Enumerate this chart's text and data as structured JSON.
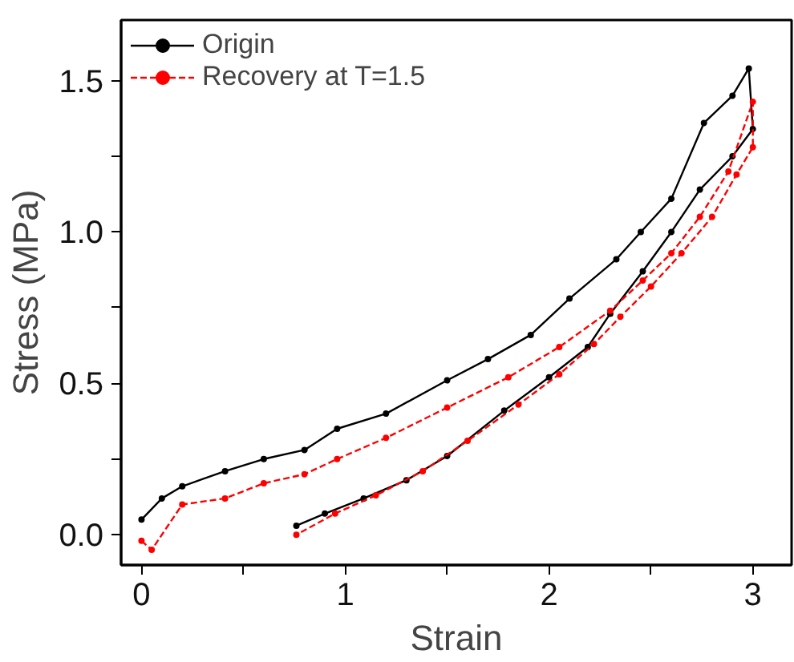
{
  "chart_data": {
    "type": "line",
    "xlabel": "Strain",
    "ylabel": "Stress (MPa)",
    "xlim": [
      -0.1,
      3.19
    ],
    "ylim": [
      -0.1,
      1.7
    ],
    "xticks": [
      0,
      {
        "value": 0.5,
        "label": null
      },
      1,
      {
        "value": 1.5,
        "label": null
      },
      2,
      {
        "value": 2.5,
        "label": null
      },
      3
    ],
    "yticks": [
      {
        "value": 0,
        "label": "0.0"
      },
      {
        "value": 0.25,
        "label": null
      },
      {
        "value": 0.5,
        "label": "0.5"
      },
      {
        "value": 0.75,
        "label": null
      },
      {
        "value": 1.0,
        "label": "1.0"
      },
      {
        "value": 1.25,
        "label": null
      },
      {
        "value": 1.5,
        "label": "1.5"
      }
    ],
    "grid": false,
    "legend": "top left",
    "marker": "circle",
    "series": [
      {
        "name": "Origin",
        "color": "#000000",
        "line_style": "solid",
        "x": [
          0,
          0.1,
          0.2,
          0.41,
          0.6,
          0.8,
          0.96,
          1.2,
          1.5,
          1.7,
          1.91,
          2.1,
          2.33,
          2.45,
          2.6,
          2.76,
          2.9,
          2.98,
          3.0,
          2.9,
          2.74,
          2.6,
          2.46,
          2.3,
          2.19,
          2.0,
          1.78,
          1.5,
          1.3,
          1.09,
          0.9,
          0.76
        ],
        "values": [
          0.05,
          0.12,
          0.16,
          0.21,
          0.25,
          0.28,
          0.35,
          0.4,
          0.51,
          0.58,
          0.66,
          0.78,
          0.91,
          1.0,
          1.11,
          1.36,
          1.45,
          1.54,
          1.34,
          1.25,
          1.14,
          1.0,
          0.87,
          0.73,
          0.62,
          0.52,
          0.41,
          0.26,
          0.18,
          0.12,
          0.07,
          0.03
        ]
      },
      {
        "name": "Recovery at T=1.5",
        "color": "#ff0000",
        "line_style": "dashed",
        "x": [
          0,
          0.05,
          0.2,
          0.41,
          0.6,
          0.8,
          0.96,
          1.2,
          1.5,
          1.8,
          2.05,
          2.3,
          2.46,
          2.6,
          2.74,
          2.88,
          3.0,
          3.0,
          2.92,
          2.8,
          2.65,
          2.5,
          2.35,
          2.22,
          2.05,
          1.85,
          1.6,
          1.38,
          1.15,
          0.95,
          0.76
        ],
        "values": [
          -0.02,
          -0.05,
          0.1,
          0.12,
          0.17,
          0.2,
          0.25,
          0.32,
          0.42,
          0.52,
          0.62,
          0.74,
          0.84,
          0.93,
          1.05,
          1.2,
          1.43,
          1.28,
          1.19,
          1.05,
          0.93,
          0.82,
          0.72,
          0.63,
          0.53,
          0.43,
          0.31,
          0.21,
          0.13,
          0.07,
          0.0
        ]
      }
    ]
  }
}
